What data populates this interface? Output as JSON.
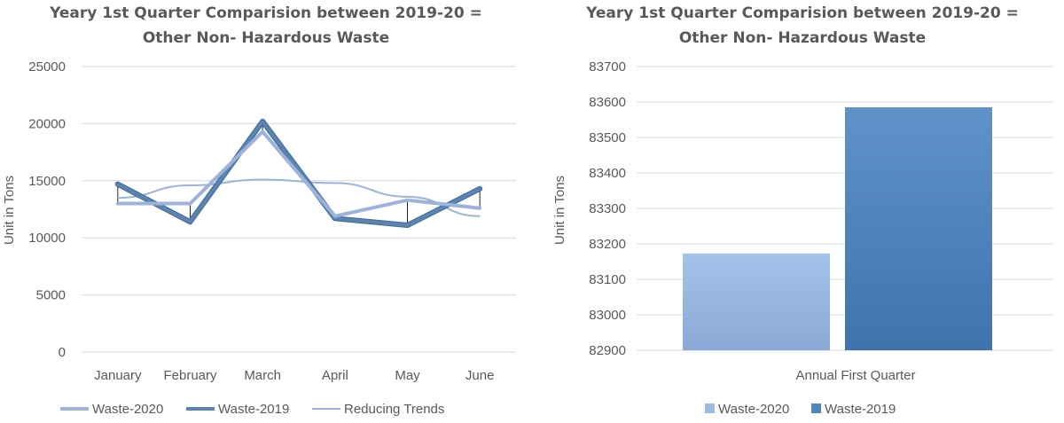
{
  "chart_data": [
    {
      "type": "line",
      "title_line1": "Yeary 1st Quarter Comparision between 2019-20 =",
      "title_line2": "Other Non- Hazardous Waste",
      "xlabel": "",
      "ylabel": "Unit in Tons",
      "categories": [
        "January",
        "February",
        "March",
        "April",
        "May",
        "June"
      ],
      "ylim": [
        0,
        25000
      ],
      "yticks": [
        "0",
        "5000",
        "10000",
        "15000",
        "20000",
        "25000"
      ],
      "grid": true,
      "legend_position": "bottom",
      "series": [
        {
          "name": "Waste-2020",
          "values": [
            13000,
            13000,
            19300,
            11900,
            13300,
            12600
          ],
          "color": "#9db3dc"
        },
        {
          "name": "Waste-2019",
          "values": [
            14700,
            11400,
            20200,
            11700,
            11100,
            14300
          ],
          "color": "#5b84b0"
        }
      ],
      "trend": {
        "name": "Reducing Trends",
        "values": [
          13500,
          14600,
          15100,
          14800,
          13600,
          11900
        ],
        "color": "#9bb5d6"
      }
    },
    {
      "type": "bar",
      "title_line1": "Yeary 1st Quarter Comparision between 2019-20 =",
      "title_line2": "Other Non- Hazardous Waste",
      "xlabel": "",
      "ylabel": "Unit in Tons",
      "categories": [
        "Annual First Quarter"
      ],
      "ylim": [
        82900,
        83700
      ],
      "yticks": [
        "82900",
        "83000",
        "83100",
        "83200",
        "83300",
        "83400",
        "83500",
        "83600",
        "83700"
      ],
      "grid": true,
      "legend_position": "bottom",
      "series": [
        {
          "name": "Waste-2020",
          "values": [
            83173
          ],
          "color": "#9dbbe2"
        },
        {
          "name": "Waste-2019",
          "values": [
            83585
          ],
          "color": "#4f86c0"
        }
      ]
    }
  ]
}
